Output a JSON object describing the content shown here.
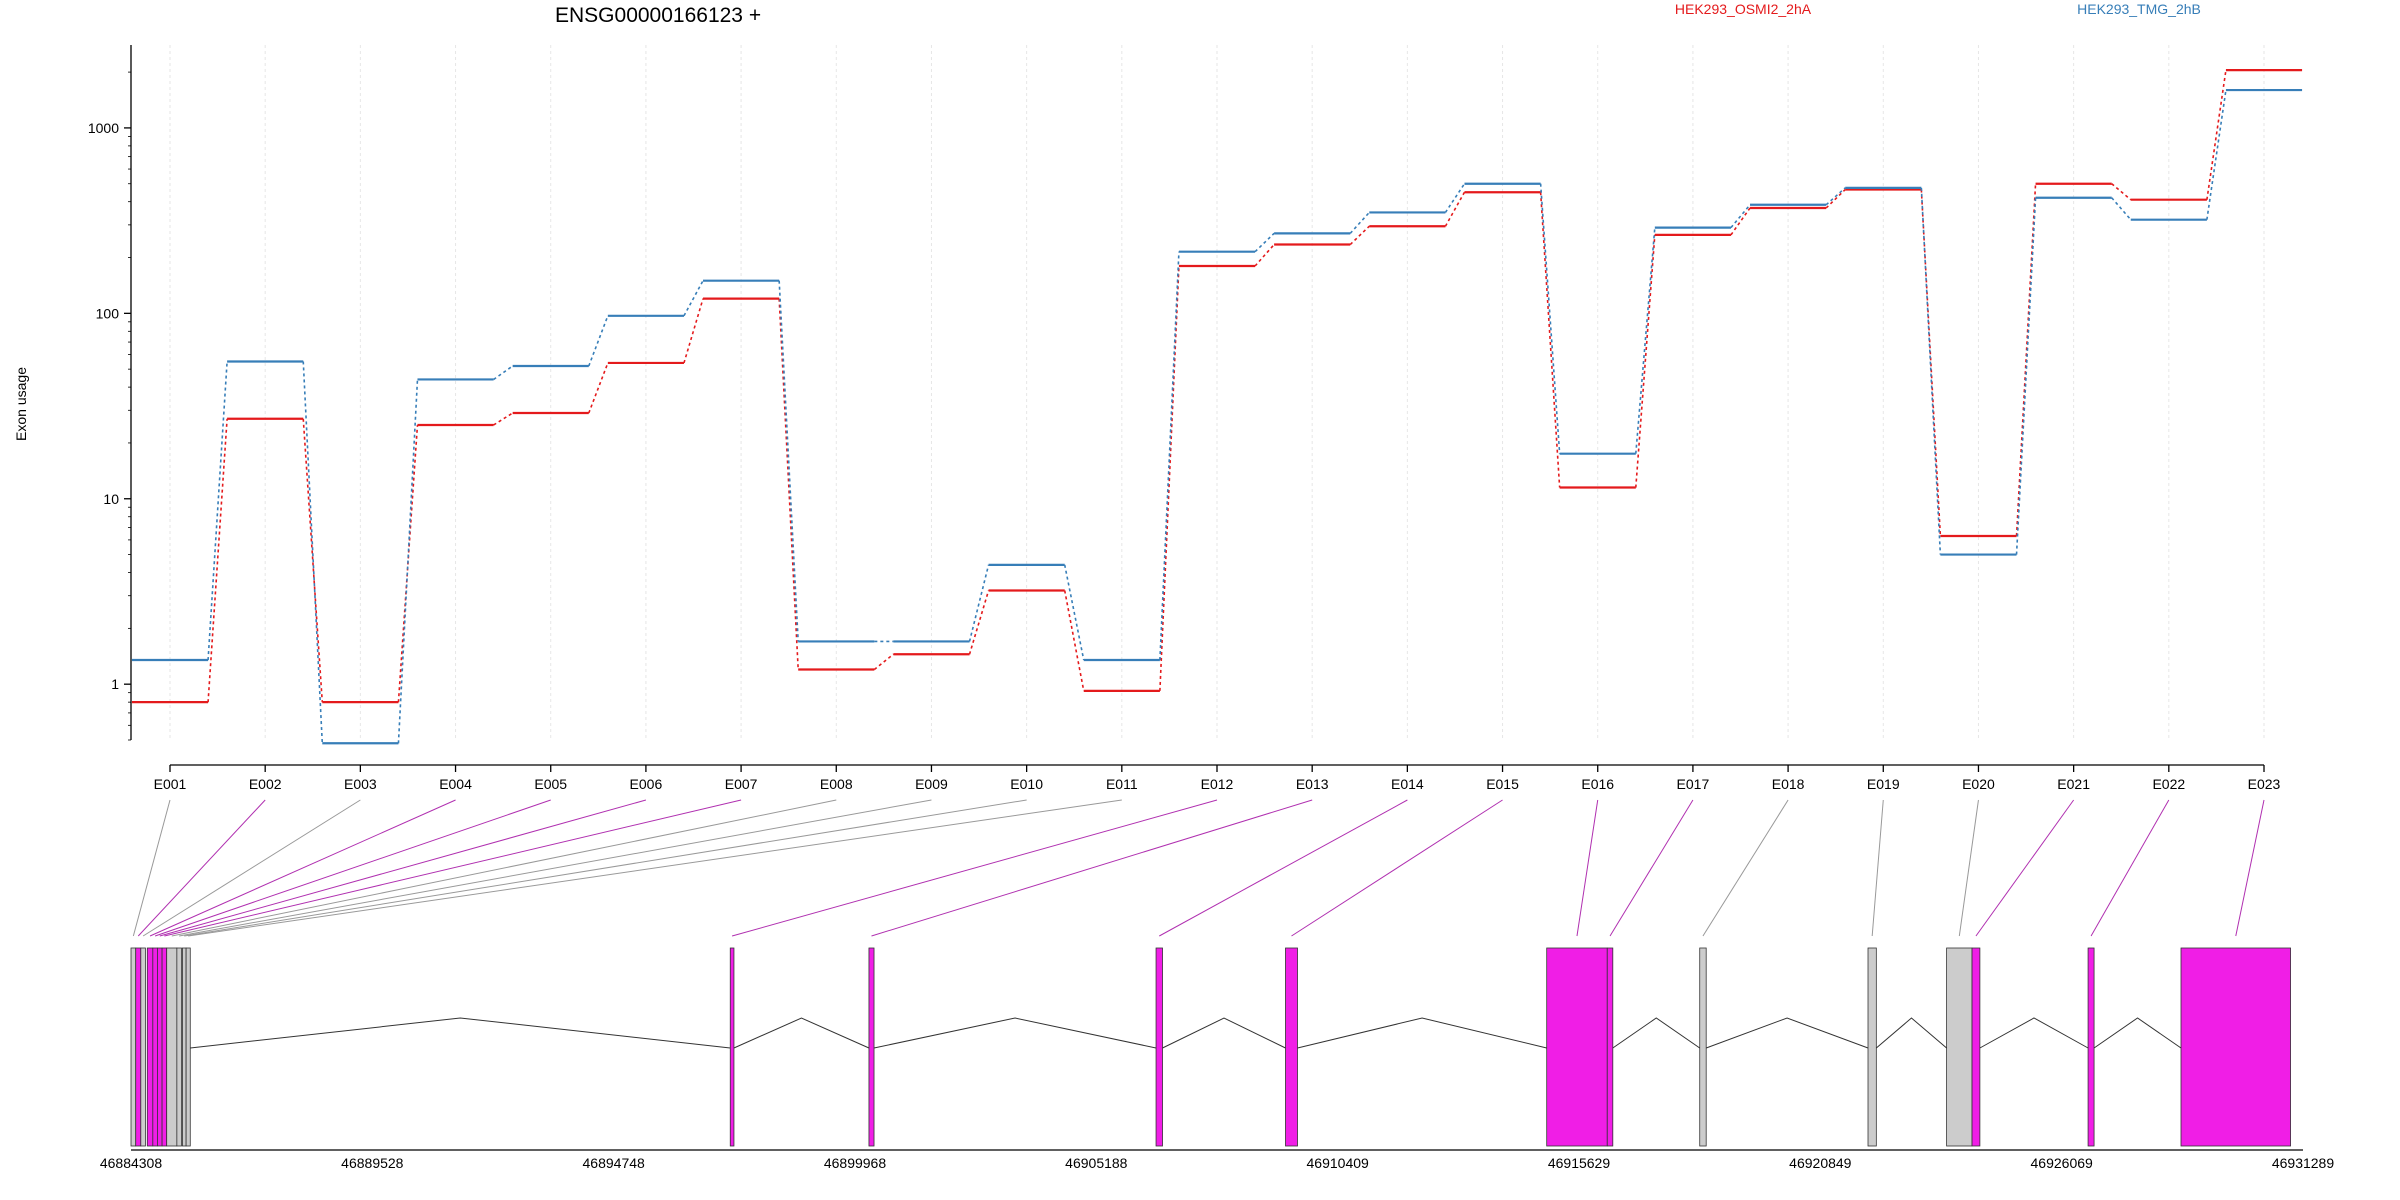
{
  "chart_data": {
    "type": "line",
    "title": "ENSG00000166123 +",
    "ylabel": "Exon usage",
    "yscale": "log",
    "ylim": [
      0.5,
      2800
    ],
    "yticks": [
      {
        "value": 1,
        "label": "1"
      },
      {
        "value": 10,
        "label": "10"
      },
      {
        "value": 100,
        "label": "100"
      },
      {
        "value": 1000,
        "label": "1000"
      }
    ],
    "categories": [
      "E001",
      "E002",
      "E003",
      "E004",
      "E005",
      "E006",
      "E007",
      "E008",
      "E009",
      "E010",
      "E011",
      "E012",
      "E013",
      "E014",
      "E015",
      "E016",
      "E017",
      "E018",
      "E019",
      "E020",
      "E021",
      "E022",
      "E023"
    ],
    "grid": true,
    "series": [
      {
        "name": "HEK293_OSMI2_2hA",
        "color": "#e41a1c",
        "values": [
          0.8,
          27,
          0.8,
          25,
          29,
          54,
          120,
          1.2,
          1.45,
          3.2,
          0.92,
          180,
          235,
          295,
          450,
          11.5,
          265,
          370,
          465,
          6.3,
          500,
          410,
          2050
        ]
      },
      {
        "name": "HEK293_TMG_2hB",
        "color": "#377eb8",
        "values": [
          1.35,
          55,
          0.48,
          44,
          52,
          97,
          150,
          1.7,
          1.7,
          4.4,
          1.35,
          215,
          270,
          350,
          500,
          17.5,
          290,
          385,
          475,
          5.0,
          420,
          320,
          1600
        ]
      }
    ],
    "gene_model": {
      "coordinate_labels": [
        "46884308",
        "46889528",
        "46894748",
        "46899968",
        "46905188",
        "46910409",
        "46915629",
        "46920849",
        "46926069",
        "46931289"
      ],
      "coord_start": 46884308,
      "coord_end": 46931289,
      "exons": [
        {
          "id": "E001",
          "start": 46884308,
          "end": 46884410,
          "highlight": false
        },
        {
          "id": "E002",
          "start": 46884410,
          "end": 46884520,
          "highlight": true
        },
        {
          "id": "E003",
          "start": 46884520,
          "end": 46884620,
          "highlight": false
        },
        {
          "id": "E004",
          "start": 46884660,
          "end": 46884780,
          "highlight": true
        },
        {
          "id": "E005",
          "start": 46884780,
          "end": 46884880,
          "highlight": true
        },
        {
          "id": "E006",
          "start": 46884880,
          "end": 46884980,
          "highlight": true
        },
        {
          "id": "E007",
          "start": 46884980,
          "end": 46885080,
          "highlight": true
        },
        {
          "id": "E008",
          "start": 46885080,
          "end": 46885300,
          "highlight": false
        },
        {
          "id": "E009",
          "start": 46885300,
          "end": 46885400,
          "highlight": false
        },
        {
          "id": "E010",
          "start": 46885420,
          "end": 46885500,
          "highlight": false
        },
        {
          "id": "E011",
          "start": 46885500,
          "end": 46885590,
          "highlight": false
        },
        {
          "id": "E012",
          "start": 46897270,
          "end": 46897350,
          "highlight": true
        },
        {
          "id": "E013",
          "start": 46900270,
          "end": 46900380,
          "highlight": true
        },
        {
          "id": "E014",
          "start": 46906480,
          "end": 46906620,
          "highlight": true
        },
        {
          "id": "E015",
          "start": 46909280,
          "end": 46909540,
          "highlight": true
        },
        {
          "id": "E016",
          "start": 46914930,
          "end": 46916240,
          "highlight": true
        },
        {
          "id": "E017",
          "start": 46916240,
          "end": 46916360,
          "highlight": true
        },
        {
          "id": "E018",
          "start": 46918240,
          "end": 46918380,
          "highlight": false
        },
        {
          "id": "E019",
          "start": 46921880,
          "end": 46922060,
          "highlight": false
        },
        {
          "id": "E020",
          "start": 46923580,
          "end": 46924130,
          "highlight": false
        },
        {
          "id": "E021",
          "start": 46924130,
          "end": 46924300,
          "highlight": true
        },
        {
          "id": "E022",
          "start": 46926640,
          "end": 46926770,
          "highlight": true
        },
        {
          "id": "E023",
          "start": 46928650,
          "end": 46931020,
          "highlight": true
        }
      ]
    }
  },
  "colors": {
    "highlight_exon": "#f01ee6",
    "plain_exon": "#cccccc",
    "highlight_link": "#b030b0",
    "plain_link": "#999999"
  }
}
